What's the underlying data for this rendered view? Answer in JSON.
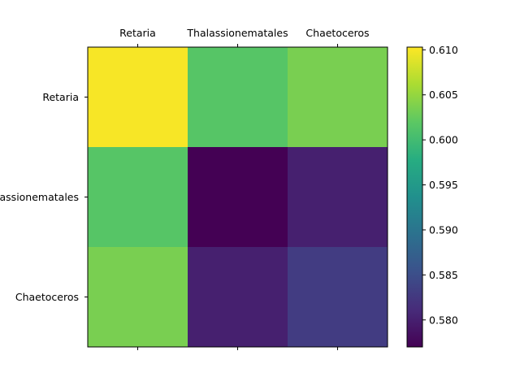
{
  "chart_data": {
    "type": "heatmap",
    "x_categories": [
      "Retaria",
      "Thalassionematales",
      "Chaetoceros"
    ],
    "y_categories": [
      "Retaria",
      "Thalassionematales",
      "Chaetoceros"
    ],
    "values": [
      [
        0.61,
        0.6015,
        0.6035
      ],
      [
        0.6015,
        0.577,
        0.58
      ],
      [
        0.6035,
        0.58,
        0.583
      ]
    ],
    "colorbar": {
      "min": 0.577,
      "max": 0.6103,
      "ticks": [
        "0.580",
        "0.585",
        "0.590",
        "0.595",
        "0.600",
        "0.605",
        "0.610"
      ],
      "colormap": "viridis",
      "placement": "right"
    },
    "x_tick_position": "top",
    "grid": false
  }
}
